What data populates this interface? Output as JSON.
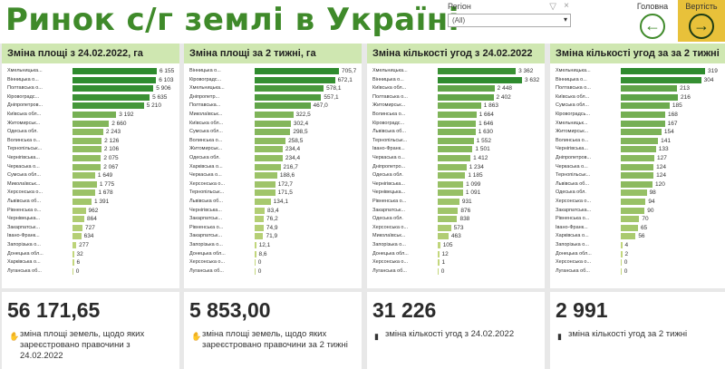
{
  "header": {
    "title": "Ринок с/г землі в Україні",
    "filter_label": "Регіон",
    "filter_value": "(All)",
    "home_label": "Головна",
    "back_label": "Вертість"
  },
  "colors": {
    "accent": "#3f8a2a",
    "bar_dark": "#2e8b2e",
    "bar_light": "#c4d77d",
    "panel_head": "#cfe7b1",
    "back_button": "#e8c13a"
  },
  "panels": [
    {
      "title": "Зміна площі з 24.02.2022, га",
      "rows": [
        {
          "label": "Хмельницька...",
          "value": "6 155"
        },
        {
          "label": "Вінницька о...",
          "value": "6 103"
        },
        {
          "label": "Полтавська о...",
          "value": "5 906"
        },
        {
          "label": "Кіровоградс...",
          "value": "5 635"
        },
        {
          "label": "Дніпропетров...",
          "value": "5 210"
        },
        {
          "label": "Київська обл...",
          "value": "3 192"
        },
        {
          "label": "Житомирськ...",
          "value": "2 660"
        },
        {
          "label": "Одеська обл.",
          "value": "2 243"
        },
        {
          "label": "Волинська о...",
          "value": "2 126"
        },
        {
          "label": "Тернопільськ...",
          "value": "2 106"
        },
        {
          "label": "Чернігівська...",
          "value": "2 075"
        },
        {
          "label": "Черкаська о...",
          "value": "2 067"
        },
        {
          "label": "Сумська обл...",
          "value": "1 649"
        },
        {
          "label": "Миколаївськ...",
          "value": "1 775"
        },
        {
          "label": "Херсонська о...",
          "value": "1 678"
        },
        {
          "label": "Львівська об...",
          "value": "1 391"
        },
        {
          "label": "Рівненська о...",
          "value": "962"
        },
        {
          "label": "Чернівецька...",
          "value": "864"
        },
        {
          "label": "Закарпатськ...",
          "value": "727"
        },
        {
          "label": "Івано-Франк...",
          "value": "634"
        },
        {
          "label": "Запорізька о...",
          "value": "277"
        },
        {
          "label": "Донецька обл...",
          "value": "32"
        },
        {
          "label": "Харківська о...",
          "value": "6"
        },
        {
          "label": "Луганська об...",
          "value": "0"
        }
      ],
      "values": [
        6155,
        6103,
        5906,
        5635,
        5210,
        3192,
        2660,
        2243,
        2126,
        2106,
        2075,
        2067,
        1649,
        1775,
        1678,
        1391,
        962,
        864,
        727,
        634,
        277,
        32,
        6,
        0
      ],
      "kpi_value": "56 171,65",
      "kpi_icon": "hand-icon",
      "kpi_text": "зміна площі земель, щодо яких зареєстровано правочини з 24.02.2022"
    },
    {
      "title": "Зміна площі за 2 тижні, га",
      "rows": [
        {
          "label": "Вінницька о...",
          "value": "705,7"
        },
        {
          "label": "Кіровоградс...",
          "value": "672,1"
        },
        {
          "label": "Хмельницька...",
          "value": "578,1"
        },
        {
          "label": "Дніпропетр...",
          "value": "557,1"
        },
        {
          "label": "Полтавська...",
          "value": "467,0"
        },
        {
          "label": "Миколаївськ...",
          "value": "322,5"
        },
        {
          "label": "Київська обл...",
          "value": "302,4"
        },
        {
          "label": "Сумська обл...",
          "value": "298,5"
        },
        {
          "label": "Волинська о...",
          "value": "258,5"
        },
        {
          "label": "Житомирськ...",
          "value": "234,4"
        },
        {
          "label": "Одеська обл.",
          "value": "234,4"
        },
        {
          "label": "Харківська о...",
          "value": "216,7"
        },
        {
          "label": "Черкаська о...",
          "value": "188,6"
        },
        {
          "label": "Херсонська о...",
          "value": "172,7"
        },
        {
          "label": "Тернопільськ...",
          "value": "171,5"
        },
        {
          "label": "Львівська об...",
          "value": "134,1"
        },
        {
          "label": "Чернігівська...",
          "value": "83,4"
        },
        {
          "label": "Закарпатськ...",
          "value": "76,2"
        },
        {
          "label": "Рівненська о...",
          "value": "74,9"
        },
        {
          "label": "Закарпатськ...",
          "value": "71,9"
        },
        {
          "label": "Запорізька о...",
          "value": "12,1"
        },
        {
          "label": "Донецька обл...",
          "value": "8,6"
        },
        {
          "label": "Херсонська о...",
          "value": "0"
        },
        {
          "label": "Луганська об...",
          "value": "0"
        }
      ],
      "values": [
        705.7,
        672.1,
        578.1,
        557.1,
        467.0,
        322.5,
        302.4,
        298.5,
        258.5,
        234.4,
        234.4,
        216.7,
        188.6,
        172.7,
        171.5,
        134.1,
        83.4,
        76.2,
        74.9,
        71.9,
        12.1,
        8.6,
        0,
        0
      ],
      "kpi_value": "5 853,00",
      "kpi_icon": "hand-icon",
      "kpi_text": "зміна площі земель, щодо яких зареєстровано правочини за 2 тижні"
    },
    {
      "title": "Зміна кількості угод з 24.02.2022",
      "rows": [
        {
          "label": "Хмельницька...",
          "value": "3 362"
        },
        {
          "label": "Вінницька о...",
          "value": "3 632"
        },
        {
          "label": "Київська обл...",
          "value": "2 448"
        },
        {
          "label": "Полтавська о...",
          "value": "2 402"
        },
        {
          "label": "Житомирськ...",
          "value": "1 863"
        },
        {
          "label": "Волинська о...",
          "value": "1 664"
        },
        {
          "label": "Кіровоградс...",
          "value": "1 646"
        },
        {
          "label": "Львівська об...",
          "value": "1 630"
        },
        {
          "label": "Тернопільськ...",
          "value": "1 552"
        },
        {
          "label": "Івано-Франк...",
          "value": "1 501"
        },
        {
          "label": "Черкаська о...",
          "value": "1 412"
        },
        {
          "label": "Дніпропетро...",
          "value": "1 234"
        },
        {
          "label": "Одеська обл.",
          "value": "1 185"
        },
        {
          "label": "Чернігівська...",
          "value": "1 099"
        },
        {
          "label": "Чернівецька...",
          "value": "1 091"
        },
        {
          "label": "Рівненська о...",
          "value": "931"
        },
        {
          "label": "Закарпатськ...",
          "value": "876"
        },
        {
          "label": "Одеська обл.",
          "value": "838"
        },
        {
          "label": "Херсонська о...",
          "value": "573"
        },
        {
          "label": "Миколаївськ...",
          "value": "463"
        },
        {
          "label": "Запорізька о...",
          "value": "105"
        },
        {
          "label": "Донецька обл...",
          "value": "12"
        },
        {
          "label": "Херсонська о...",
          "value": "1"
        },
        {
          "label": "Луганська об...",
          "value": "0"
        }
      ],
      "values": [
        3362,
        3632,
        2448,
        2402,
        1863,
        1664,
        1646,
        1630,
        1552,
        1501,
        1412,
        1234,
        1185,
        1099,
        1091,
        931,
        876,
        838,
        573,
        463,
        105,
        12,
        1,
        0
      ],
      "kpi_value": "31 226",
      "kpi_icon": "document-icon",
      "kpi_text": "зміна кількості угод з 24.02.2022"
    },
    {
      "title": "Зміна кількості угод за за 2 тижні",
      "rows": [
        {
          "label": "Хмельницька...",
          "value": "319"
        },
        {
          "label": "Вінницька о...",
          "value": "304"
        },
        {
          "label": "Полтавська о...",
          "value": "213"
        },
        {
          "label": "Київська обл...",
          "value": "216"
        },
        {
          "label": "Сумська обл...",
          "value": "185"
        },
        {
          "label": "Кіровоградсь...",
          "value": "168"
        },
        {
          "label": "Хмельницьк...",
          "value": "167"
        },
        {
          "label": "Житомирськ...",
          "value": "154"
        },
        {
          "label": "Волинська о...",
          "value": "141"
        },
        {
          "label": "Чернігівська...",
          "value": "133"
        },
        {
          "label": "Дніпропетров...",
          "value": "127"
        },
        {
          "label": "Черкаська о...",
          "value": "124"
        },
        {
          "label": "Тернопільськ...",
          "value": "124"
        },
        {
          "label": "Львівська об...",
          "value": "120"
        },
        {
          "label": "Одеська обл.",
          "value": "98"
        },
        {
          "label": "Херсонська о...",
          "value": "94"
        },
        {
          "label": "Закарпатська...",
          "value": "90"
        },
        {
          "label": "Рівненська о...",
          "value": "70"
        },
        {
          "label": "Івано-Франк...",
          "value": "65"
        },
        {
          "label": "Харківська о...",
          "value": "56"
        },
        {
          "label": "Запорізька о...",
          "value": "4"
        },
        {
          "label": "Донецька обл...",
          "value": "2"
        },
        {
          "label": "Херсонська о...",
          "value": "0"
        },
        {
          "label": "Луганська об...",
          "value": "0"
        }
      ],
      "values": [
        319,
        304,
        213,
        216,
        185,
        168,
        167,
        154,
        141,
        133,
        127,
        124,
        124,
        120,
        98,
        94,
        90,
        70,
        65,
        56,
        4,
        2,
        0,
        0
      ],
      "kpi_value": "2 991",
      "kpi_icon": "document-icon",
      "kpi_text": "зміна кількості угод за 2 тижні"
    }
  ],
  "chart_data": [
    {
      "type": "bar",
      "title": "Зміна площі з 24.02.2022, га",
      "categories": [
        "Хмельницька...",
        "Вінницька о...",
        "Полтавська о...",
        "Кіровоградс...",
        "Дніпропетров...",
        "Київська обл...",
        "Житомирськ...",
        "Одеська обл.",
        "Волинська о...",
        "Тернопільськ...",
        "Чернігівська...",
        "Черкаська о...",
        "Сумська обл...",
        "Миколаївськ...",
        "Херсонська о...",
        "Львівська об...",
        "Рівненська о...",
        "Чернівецька...",
        "Закарпатськ...",
        "Івано-Франк...",
        "Запорізька о...",
        "Донецька обл...",
        "Харківська о...",
        "Луганська об..."
      ],
      "values": [
        6155,
        6103,
        5906,
        5635,
        5210,
        3192,
        2660,
        2243,
        2126,
        2106,
        2075,
        2067,
        1649,
        1775,
        1678,
        1391,
        962,
        864,
        727,
        634,
        277,
        32,
        6,
        0
      ]
    },
    {
      "type": "bar",
      "title": "Зміна площі за 2 тижні, га",
      "values": [
        705.7,
        672.1,
        578.1,
        557.1,
        467.0,
        322.5,
        302.4,
        298.5,
        258.5,
        234.4,
        234.4,
        216.7,
        188.6,
        172.7,
        171.5,
        134.1,
        83.4,
        76.2,
        74.9,
        71.9,
        12.1,
        8.6,
        0,
        0
      ]
    },
    {
      "type": "bar",
      "title": "Зміна кількості угод з 24.02.2022",
      "values": [
        3362,
        3632,
        2448,
        2402,
        1863,
        1664,
        1646,
        1630,
        1552,
        1501,
        1412,
        1234,
        1185,
        1099,
        1091,
        931,
        876,
        838,
        573,
        463,
        105,
        12,
        1,
        0
      ]
    },
    {
      "type": "bar",
      "title": "Зміна кількості угод за за 2 тижні",
      "values": [
        319,
        304,
        213,
        216,
        185,
        168,
        167,
        154,
        141,
        133,
        127,
        124,
        124,
        120,
        98,
        94,
        90,
        70,
        65,
        56,
        4,
        2,
        0,
        0
      ]
    }
  ]
}
